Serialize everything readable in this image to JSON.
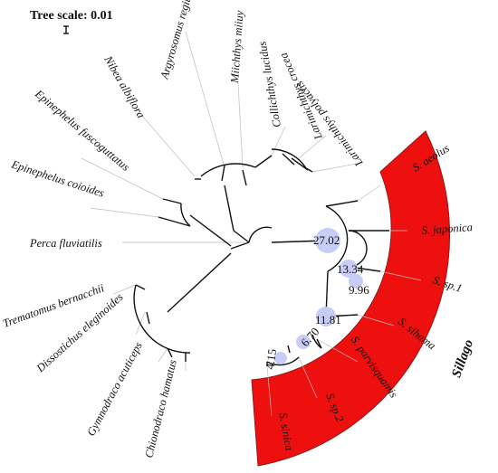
{
  "tree": {
    "scale_label": "Tree scale: 0.01",
    "highlight_color": "#ee0f0f",
    "node_marker_color": "#c7cdf5",
    "clade_label": "Sillago",
    "leaves": [
      {
        "id": "argyrosomus",
        "label": "Argyrosomus regius"
      },
      {
        "id": "miichthys",
        "label": "Miichthys miiuy"
      },
      {
        "id": "collichthys",
        "label": "Collichthys lucidus"
      },
      {
        "id": "larimichthys-crocea",
        "label": "Larimichthys crocea"
      },
      {
        "id": "larimichthys-polyactis",
        "label": "Larimichthys polyactis"
      },
      {
        "id": "nibea",
        "label": "Nibea albiflora"
      },
      {
        "id": "epinephelus-fusco",
        "label": "Epinephelus fuscoguttatus"
      },
      {
        "id": "epinephelus-coioides",
        "label": "Epinephelus coioides"
      },
      {
        "id": "perca",
        "label": "Perca fluviatilis"
      },
      {
        "id": "trematomus",
        "label": "Trematomus bernacchii"
      },
      {
        "id": "dissostichus",
        "label": "Dissostichus eleginoides"
      },
      {
        "id": "gymnodraco",
        "label": "Gymnodraco acuticeps"
      },
      {
        "id": "chionodraco",
        "label": "Chionodraco hamatus"
      },
      {
        "id": "s-aeolus",
        "label": "S. aeolus"
      },
      {
        "id": "s-japonica",
        "label": "S. japonica"
      },
      {
        "id": "s-sp1",
        "label": "S. sp.1"
      },
      {
        "id": "s-sihama",
        "label": "S. sihama"
      },
      {
        "id": "s-parvisquamis",
        "label": "S. parvisquamis"
      },
      {
        "id": "s-sp2",
        "label": "S. sp.2"
      },
      {
        "id": "s-sinica",
        "label": "S. sinica"
      }
    ],
    "node_values": [
      {
        "id": "n1",
        "label": "27.02"
      },
      {
        "id": "n2",
        "label": "13.34"
      },
      {
        "id": "n3",
        "label": "9.96"
      },
      {
        "id": "n4",
        "label": "11.81"
      },
      {
        "id": "n5",
        "label": "6.70"
      },
      {
        "id": "n6",
        "label": "4.15"
      }
    ]
  }
}
